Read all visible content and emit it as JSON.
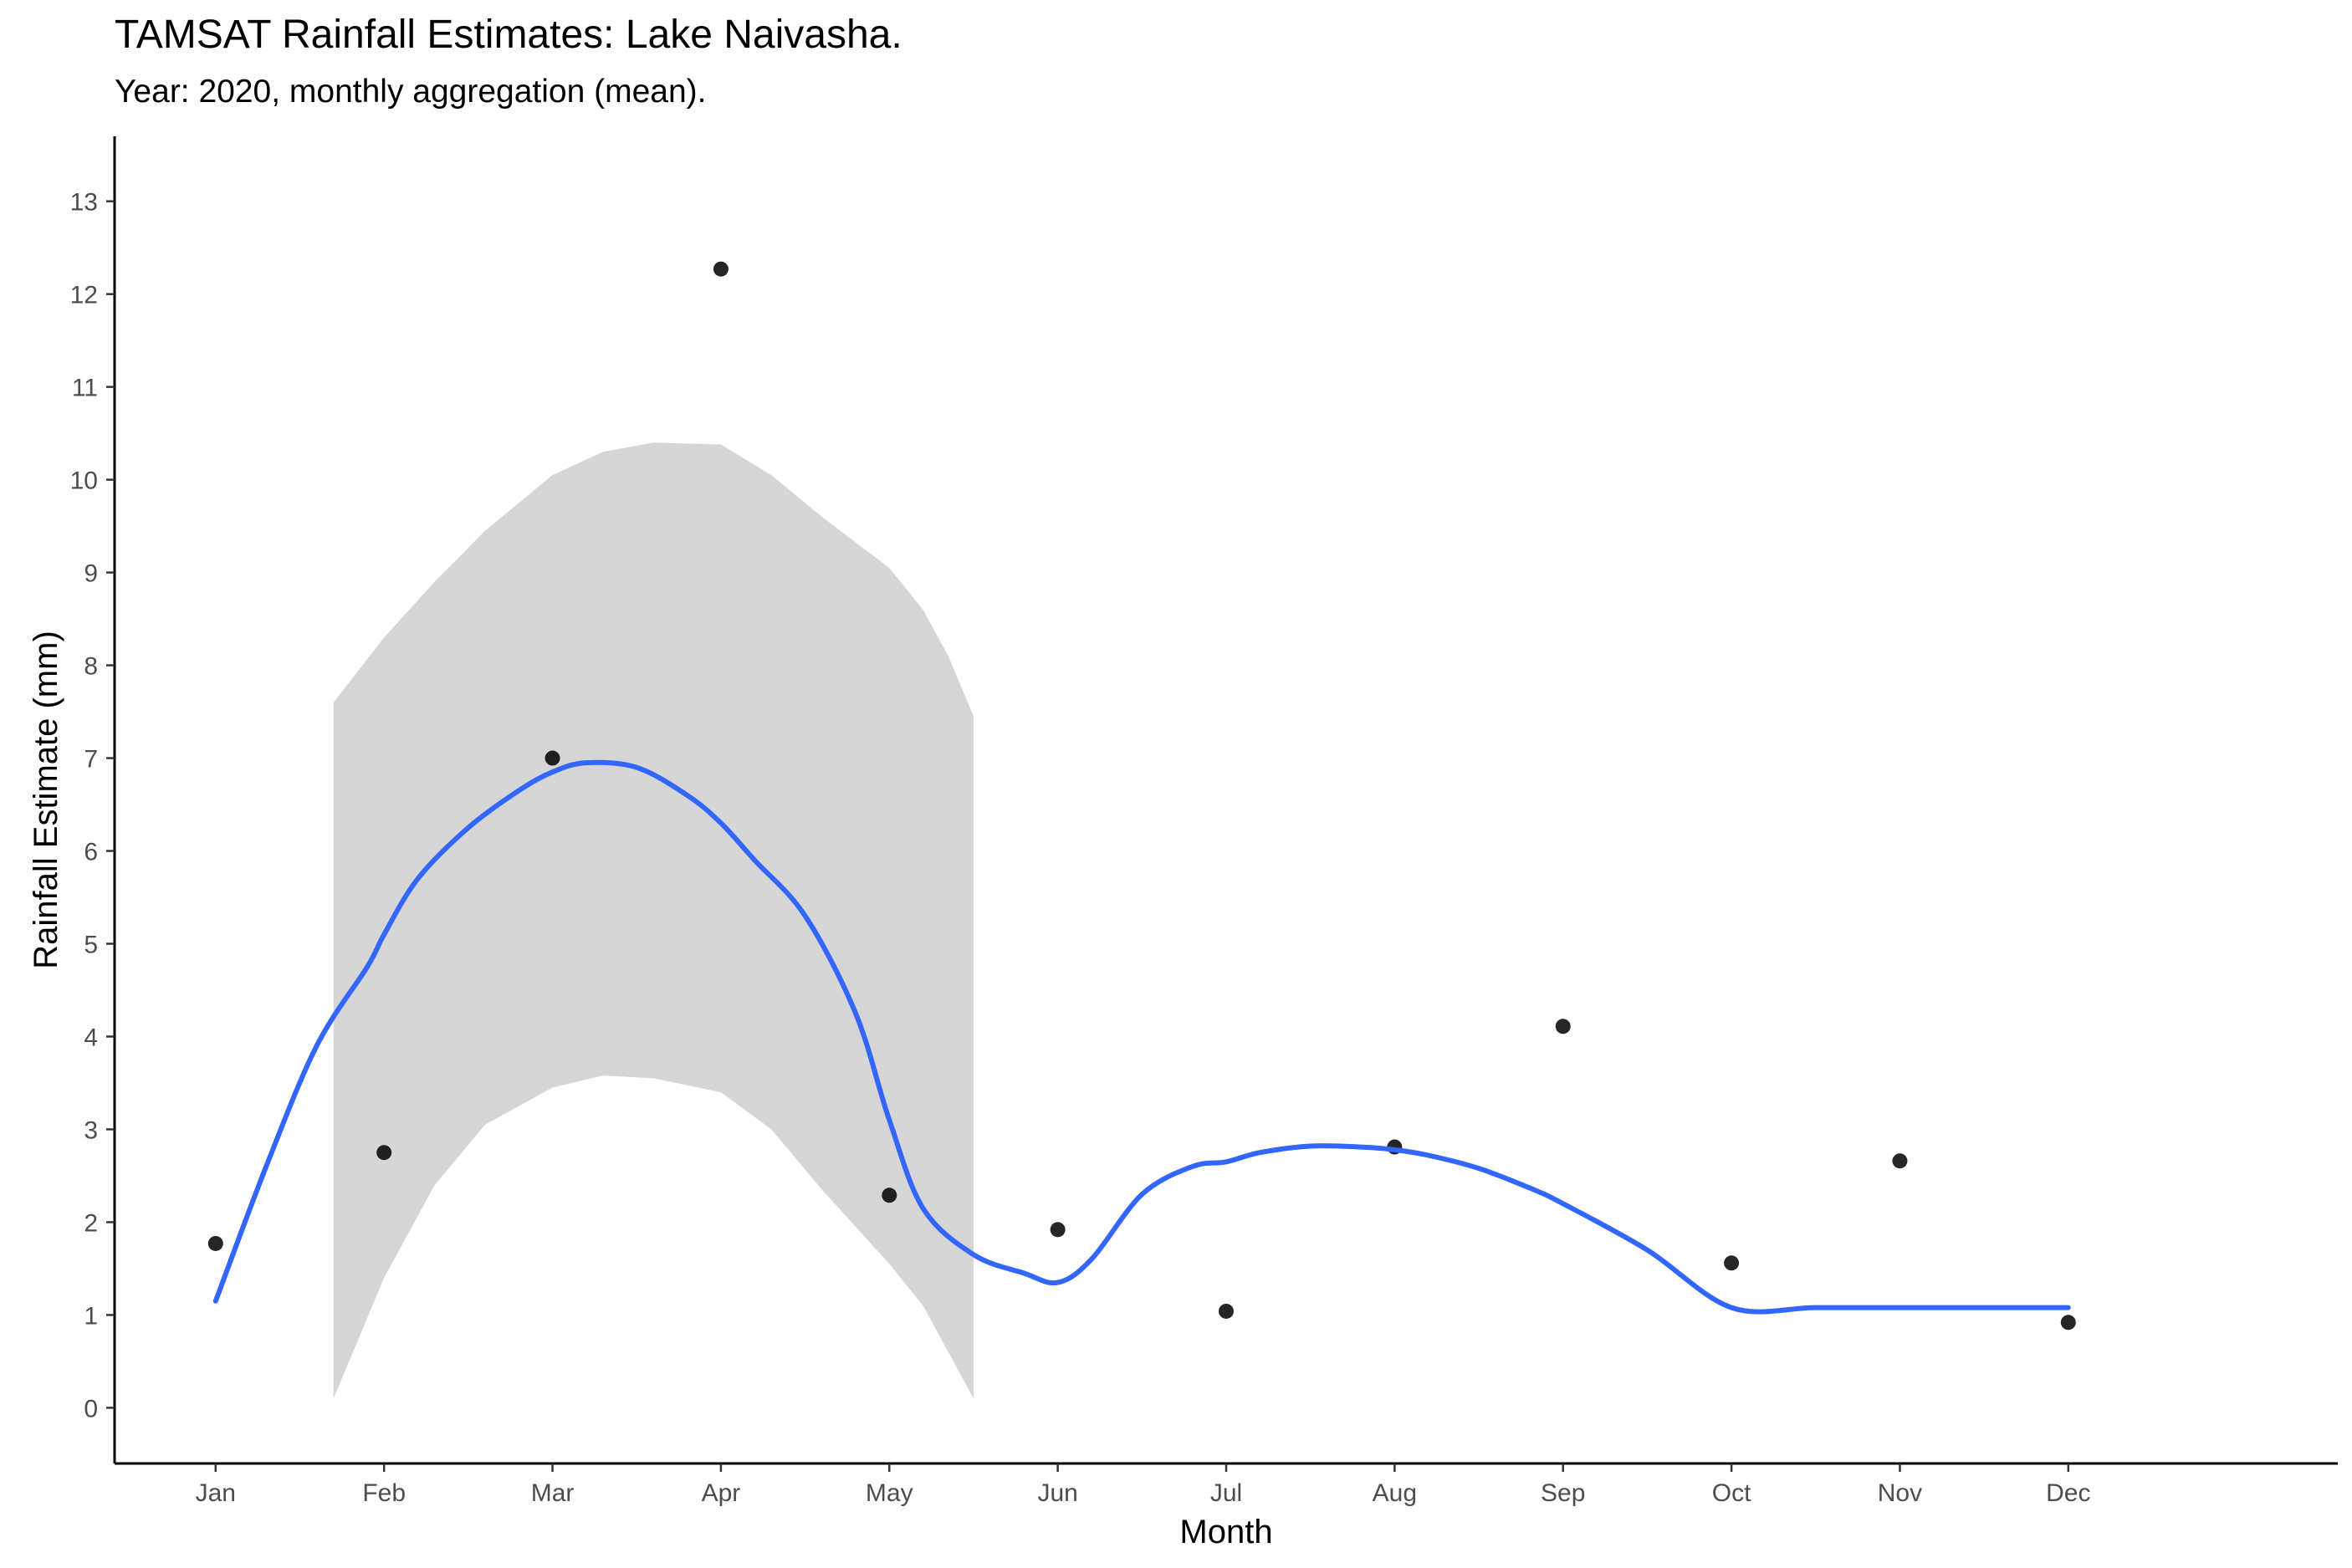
{
  "chart_data": {
    "type": "scatter",
    "title": "TAMSAT Rainfall Estimates: Lake Naivasha.",
    "subtitle": "Year: 2020, monthly aggregation (mean).",
    "xlabel": "Month",
    "ylabel": "Rainfall Estimate (mm)",
    "categories": [
      "Jan",
      "Feb",
      "Mar",
      "Apr",
      "May",
      "Jun",
      "Jul",
      "Aug",
      "Sep",
      "Oct",
      "Nov",
      "Dec"
    ],
    "xlim": [
      0.4,
      13.6
    ],
    "ylim": [
      -0.6,
      13.7
    ],
    "yticks": [
      0,
      1,
      2,
      3,
      4,
      5,
      6,
      7,
      8,
      9,
      10,
      11,
      12,
      13
    ],
    "grid": false,
    "points": [
      1.77,
      2.75,
      7.0,
      12.27,
      2.29,
      1.92,
      1.04,
      2.81,
      4.11,
      1.56,
      2.66,
      0.92
    ],
    "smooth": {
      "color": "#3366FF",
      "x": [
        1.0,
        1.3,
        1.6,
        1.9,
        2.0,
        2.2,
        2.5,
        2.8,
        3.0,
        3.2,
        3.5,
        3.8,
        4.0,
        4.2,
        4.5,
        4.8,
        5.0,
        5.2,
        5.5,
        5.8,
        6.0,
        6.2,
        6.5,
        6.8,
        7.0,
        7.2,
        7.5,
        7.8,
        8.0,
        8.2,
        8.5,
        8.8,
        9.0,
        9.5,
        10.0,
        10.5,
        11.0,
        11.5,
        12.0
      ],
      "y": [
        1.15,
        2.6,
        3.9,
        4.75,
        5.1,
        5.7,
        6.25,
        6.65,
        6.85,
        6.95,
        6.9,
        6.6,
        6.3,
        5.9,
        5.3,
        4.25,
        3.1,
        2.15,
        1.65,
        1.45,
        1.35,
        1.6,
        2.3,
        2.6,
        2.65,
        2.75,
        2.82,
        2.81,
        2.78,
        2.72,
        2.58,
        2.37,
        2.2,
        1.7,
        1.08,
        1.08,
        1.08,
        1.08,
        1.08
      ]
    },
    "ribbon": {
      "color": "#d6d6d6",
      "x": [
        1.7,
        2.0,
        2.3,
        2.6,
        3.0,
        3.3,
        3.6,
        4.0,
        4.3,
        4.6,
        5.0,
        5.2,
        5.35,
        5.5
      ],
      "upper": [
        7.6,
        8.3,
        8.9,
        9.45,
        10.05,
        10.3,
        10.4,
        10.38,
        10.05,
        9.6,
        9.05,
        8.6,
        8.1,
        7.45
      ],
      "lower": [
        0.1,
        1.4,
        2.4,
        3.05,
        3.45,
        3.58,
        3.55,
        3.4,
        3.0,
        2.35,
        1.55,
        1.1,
        0.6,
        0.1
      ]
    }
  }
}
